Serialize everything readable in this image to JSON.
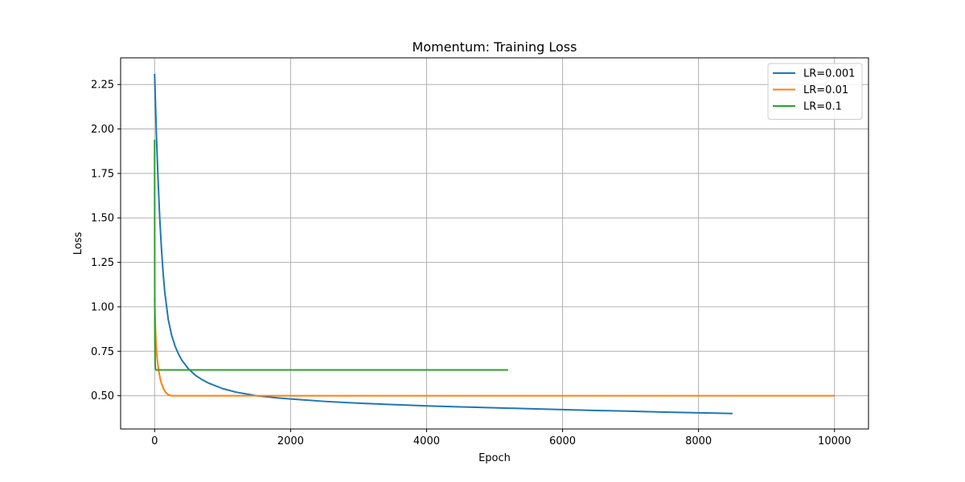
{
  "chart_data": {
    "type": "line",
    "title": "Momentum: Training Loss",
    "xlabel": "Epoch",
    "ylabel": "Loss",
    "xlim": [
      -500,
      10500
    ],
    "ylim": [
      0.313,
      2.4
    ],
    "xticks": [
      0,
      2000,
      4000,
      6000,
      8000,
      10000
    ],
    "xtick_labels": [
      "0",
      "2000",
      "4000",
      "6000",
      "8000",
      "10000"
    ],
    "yticks": [
      0.5,
      0.75,
      1.0,
      1.25,
      1.5,
      1.75,
      2.0,
      2.25
    ],
    "ytick_labels": [
      "0.50",
      "0.75",
      "1.00",
      "1.25",
      "1.50",
      "1.75",
      "2.00",
      "2.25"
    ],
    "grid": true,
    "legend_position": "top-right",
    "series": [
      {
        "name": "LR=0.001",
        "color": "#1f77b4",
        "x": [
          0,
          10,
          25,
          50,
          75,
          100,
          125,
          150,
          200,
          250,
          300,
          350,
          400,
          500,
          600,
          700,
          800,
          1000,
          1200,
          1500,
          1800,
          2000,
          2500,
          3000,
          3500,
          4000,
          4500,
          5000,
          5500,
          6000,
          6500,
          7000,
          7500,
          8000,
          8500
        ],
        "y": [
          2.31,
          2.18,
          1.98,
          1.72,
          1.5,
          1.33,
          1.19,
          1.08,
          0.93,
          0.84,
          0.78,
          0.735,
          0.7,
          0.65,
          0.615,
          0.59,
          0.57,
          0.54,
          0.52,
          0.5,
          0.488,
          0.482,
          0.468,
          0.458,
          0.45,
          0.443,
          0.437,
          0.432,
          0.427,
          0.422,
          0.417,
          0.413,
          0.408,
          0.404,
          0.4
        ]
      },
      {
        "name": "LR=0.01",
        "color": "#ff7f0e",
        "x": [
          0,
          5,
          10,
          20,
          30,
          40,
          60,
          80,
          100,
          130,
          160,
          200,
          250,
          300,
          10000
        ],
        "y": [
          1.05,
          0.97,
          0.9,
          0.8,
          0.74,
          0.7,
          0.64,
          0.6,
          0.57,
          0.54,
          0.52,
          0.505,
          0.5,
          0.5,
          0.5
        ]
      },
      {
        "name": "LR=0.1",
        "color": "#2ca02c",
        "x": [
          0,
          1,
          2,
          3,
          5,
          8,
          12,
          20,
          5200
        ],
        "y": [
          1.94,
          1.5,
          1.1,
          0.9,
          0.75,
          0.68,
          0.655,
          0.645,
          0.645
        ]
      }
    ]
  }
}
